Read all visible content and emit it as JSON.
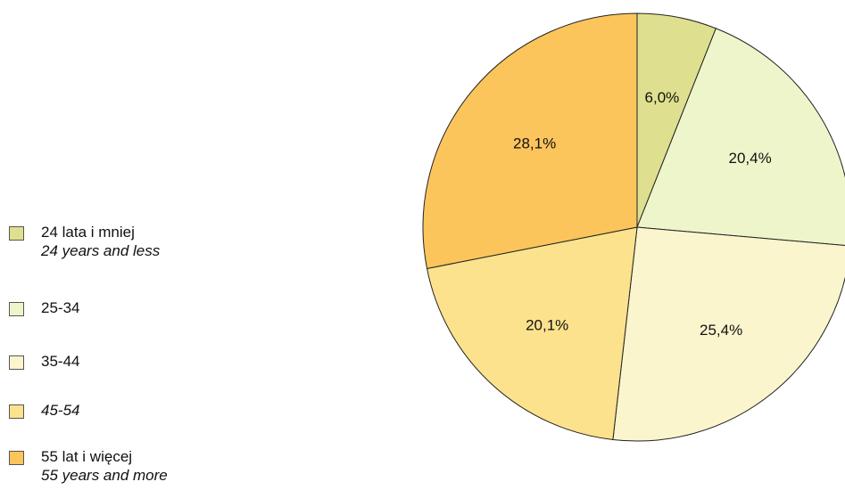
{
  "chart_data": {
    "type": "pie",
    "slices": [
      {
        "label": "24 lata i mniej",
        "sublabel": "24 years and less",
        "value": 6.0,
        "value_label": "6,0%",
        "color": "#dfe08f"
      },
      {
        "label": "25-34",
        "sublabel": "",
        "value": 20.4,
        "value_label": "20,4%",
        "color": "#eff5cb"
      },
      {
        "label": "35-44",
        "sublabel": "",
        "value": 25.4,
        "value_label": "25,4%",
        "color": "#fbf5cd"
      },
      {
        "label": "45-54",
        "sublabel": "",
        "value": 20.1,
        "value_label": "20,1%",
        "color": "#fce28d",
        "label_italic": true
      },
      {
        "label": "55 lat i więcej",
        "sublabel": "55 years and more",
        "value": 28.1,
        "value_label": "28,1%",
        "color": "#fcc55c"
      }
    ],
    "start_angle_deg": 0,
    "direction": "clockwise",
    "legend_position": "left"
  }
}
